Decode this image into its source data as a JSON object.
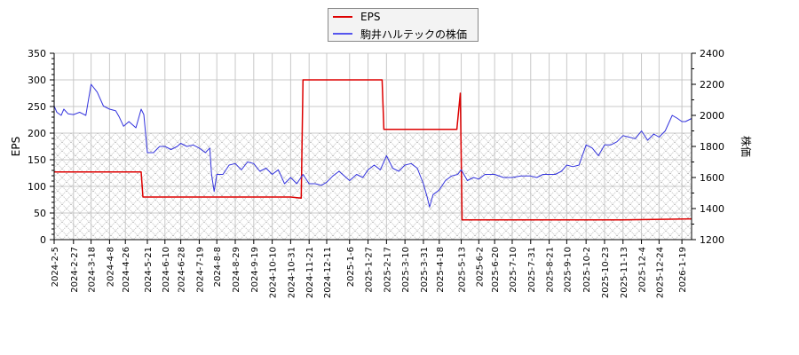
{
  "chart_data": {
    "type": "line",
    "title": "",
    "legend": {
      "position": "top-center",
      "entries": [
        {
          "label": "EPS",
          "color": "#dd0000"
        },
        {
          "label": "駒井ハルテックの株価",
          "color": "#3333dd"
        }
      ]
    },
    "xlabel": "",
    "ylabel": "EPS",
    "y2label": "株価",
    "ylim": [
      0,
      350
    ],
    "y2lim": [
      1200,
      2400
    ],
    "yticks": [
      0,
      50,
      100,
      150,
      200,
      250,
      300,
      350
    ],
    "y2ticks": [
      1200,
      1400,
      1600,
      1800,
      2000,
      2200,
      2400
    ],
    "grid": true,
    "shaded_band": {
      "axis": "y",
      "from": 0,
      "to": 200,
      "style": "crosshatch"
    },
    "xticks": [
      "2024-2-5",
      "2024-2-27",
      "2024-3-18",
      "2024-4-8",
      "2024-4-26",
      "2024-5-21",
      "2024-6-10",
      "2024-6-28",
      "2024-7-19",
      "2024-8-8",
      "2024-8-29",
      "2024-9-19",
      "2024-10-10",
      "2024-10-31",
      "2024-11-21",
      "2024-12-11",
      "2025-1-6",
      "2025-1-27",
      "2025-2-17",
      "2025-3-10",
      "2025-3-31",
      "2025-4-18",
      "2025-5-13",
      "2025-6-2",
      "2025-6-20",
      "2025-7-10",
      "2025-7-31",
      "2025-8-21",
      "2025-9-10",
      "2025-10-2",
      "2025-10-23",
      "2025-11-13",
      "2025-12-4",
      "2025-12-24",
      "2026-1-19"
    ],
    "series": [
      {
        "name": "EPS",
        "axis": "left",
        "color": "#dd0000",
        "x": [
          "2024-2-5",
          "2024-5-14",
          "2024-5-16",
          "2024-10-31",
          "2024-11-12",
          "2024-11-14",
          "2025-2-12",
          "2025-2-14",
          "2025-5-8",
          "2025-5-12",
          "2025-5-14",
          "2025-11-13",
          "2026-1-30"
        ],
        "values": [
          127,
          127,
          80,
          80,
          78,
          300,
          300,
          207,
          207,
          275,
          37,
          37,
          39
        ]
      },
      {
        "name": "駒井ハルテックの株価",
        "axis": "right",
        "color": "#3333dd",
        "x": [
          "2024-2-5",
          "2024-2-8",
          "2024-2-13",
          "2024-2-16",
          "2024-2-21",
          "2024-2-27",
          "2024-3-5",
          "2024-3-12",
          "2024-3-18",
          "2024-3-25",
          "2024-4-1",
          "2024-4-8",
          "2024-4-15",
          "2024-4-19",
          "2024-4-24",
          "2024-4-30",
          "2024-5-8",
          "2024-5-14",
          "2024-5-17",
          "2024-5-21",
          "2024-5-28",
          "2024-6-4",
          "2024-6-10",
          "2024-6-17",
          "2024-6-24",
          "2024-6-28",
          "2024-7-5",
          "2024-7-12",
          "2024-7-19",
          "2024-7-26",
          "2024-7-31",
          "2024-8-2",
          "2024-8-5",
          "2024-8-8",
          "2024-8-15",
          "2024-8-22",
          "2024-8-29",
          "2024-9-5",
          "2024-9-12",
          "2024-9-19",
          "2024-9-26",
          "2024-10-3",
          "2024-10-10",
          "2024-10-17",
          "2024-10-24",
          "2024-10-31",
          "2024-11-7",
          "2024-11-14",
          "2024-11-21",
          "2024-11-28",
          "2024-12-5",
          "2024-12-11",
          "2024-12-18",
          "2024-12-25",
          "2025-1-6",
          "2025-1-14",
          "2025-1-21",
          "2025-1-27",
          "2025-2-3",
          "2025-2-10",
          "2025-2-17",
          "2025-2-24",
          "2025-3-3",
          "2025-3-10",
          "2025-3-17",
          "2025-3-24",
          "2025-3-31",
          "2025-4-4",
          "2025-4-7",
          "2025-4-11",
          "2025-4-18",
          "2025-4-25",
          "2025-5-2",
          "2025-5-9",
          "2025-5-13",
          "2025-5-20",
          "2025-5-27",
          "2025-6-2",
          "2025-6-9",
          "2025-6-20",
          "2025-6-30",
          "2025-7-10",
          "2025-7-20",
          "2025-7-31",
          "2025-8-7",
          "2025-8-14",
          "2025-8-21",
          "2025-8-28",
          "2025-9-4",
          "2025-9-10",
          "2025-9-17",
          "2025-9-24",
          "2025-10-2",
          "2025-10-9",
          "2025-10-16",
          "2025-10-23",
          "2025-10-30",
          "2025-11-6",
          "2025-11-13",
          "2025-11-20",
          "2025-11-27",
          "2025-12-4",
          "2025-12-11",
          "2025-12-18",
          "2025-12-24",
          "2025-12-31",
          "2026-1-8",
          "2026-1-14",
          "2026-1-19",
          "2026-1-23",
          "2026-1-30"
        ],
        "values": [
          2060,
          2020,
          2000,
          2040,
          2010,
          2005,
          2020,
          2000,
          2200,
          2150,
          2060,
          2040,
          2030,
          1990,
          1930,
          1960,
          1920,
          2040,
          2005,
          1760,
          1760,
          1800,
          1800,
          1780,
          1800,
          1820,
          1800,
          1810,
          1790,
          1760,
          1790,
          1620,
          1510,
          1620,
          1620,
          1680,
          1690,
          1650,
          1700,
          1690,
          1640,
          1660,
          1620,
          1650,
          1560,
          1600,
          1560,
          1620,
          1560,
          1560,
          1550,
          1570,
          1610,
          1640,
          1580,
          1620,
          1600,
          1650,
          1680,
          1650,
          1740,
          1660,
          1640,
          1680,
          1690,
          1660,
          1560,
          1480,
          1410,
          1490,
          1520,
          1580,
          1610,
          1620,
          1650,
          1580,
          1600,
          1590,
          1620,
          1620,
          1600,
          1600,
          1610,
          1610,
          1600,
          1620,
          1620,
          1620,
          1640,
          1680,
          1670,
          1680,
          1810,
          1790,
          1740,
          1810,
          1810,
          1830,
          1870,
          1860,
          1850,
          1900,
          1840,
          1880,
          1860,
          1900,
          2000,
          1980,
          1960,
          1960,
          1980
        ]
      }
    ]
  }
}
